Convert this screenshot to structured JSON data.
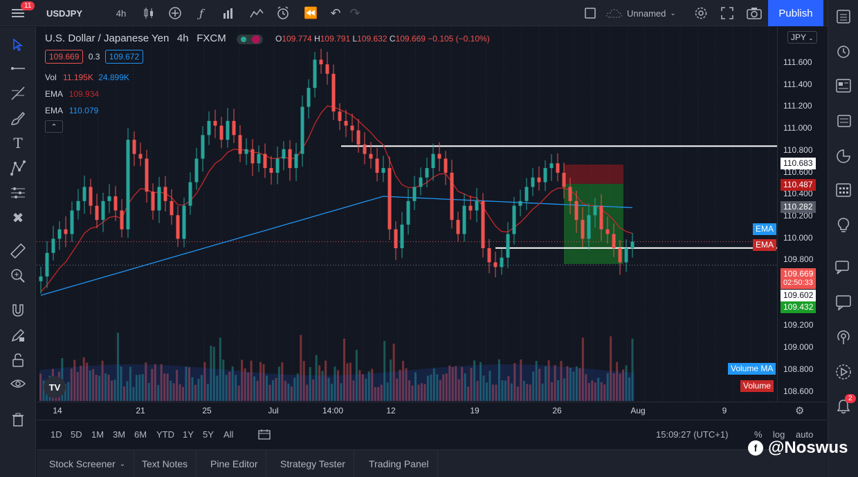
{
  "topbar": {
    "badge": "11",
    "symbol": "USDJPY",
    "interval": "4h",
    "layout_name": "Unnamed",
    "publish_label": "Publish"
  },
  "legend": {
    "title": "U.S. Dollar / Japanese Yen",
    "interval": "4h",
    "exchange": "FXCM",
    "open_label": "O",
    "open": "109.774",
    "high_label": "H",
    "high": "109.791",
    "low_label": "L",
    "low": "109.632",
    "close_label": "C",
    "close": "109.669",
    "change": "−0.105 (−0.10%)",
    "bid": "109.669",
    "spread": "0.3",
    "ask": "109.672",
    "vol_label": "Vol",
    "vol_value": "11.195K",
    "vol_ma": "24.899K",
    "ema1_label": "EMA",
    "ema1_value": "109.934",
    "ema2_label": "EMA",
    "ema2_value": "110.079"
  },
  "colors": {
    "up": "#26a69a",
    "down": "#ef5350",
    "ema_red": "#c62828",
    "ema_blue": "#2196f3",
    "accent": "#2962ff",
    "background": "#131722"
  },
  "price_axis": {
    "currency": "JPY",
    "ticks": [
      "111.600",
      "111.400",
      "111.200",
      "111.000",
      "110.800",
      "110.600",
      "110.400",
      "110.200",
      "110.000",
      "109.800",
      "109.600",
      "109.400",
      "109.200",
      "109.000",
      "108.800",
      "108.600"
    ],
    "labels": {
      "line_high": "110.683",
      "stop": "110.487",
      "entry": "110.282",
      "ema_label": "EMA",
      "ema2_label": "EMA",
      "current": "109.669",
      "countdown": "02:50:33",
      "line_low": "109.602",
      "target": "109.432",
      "volume_ma_label": "Volume MA",
      "volume_label": "Volume"
    }
  },
  "time_axis": {
    "labels": [
      "14",
      "21",
      "25",
      "Jul",
      "14:00",
      "12",
      "19",
      "26",
      "Aug",
      "9"
    ]
  },
  "range_bar": {
    "ranges": [
      "1D",
      "5D",
      "1M",
      "3M",
      "6M",
      "YTD",
      "1Y",
      "5Y",
      "All"
    ],
    "clock": "15:09:27 (UTC+1)",
    "percent": "%",
    "log": "log",
    "auto": "auto"
  },
  "bottom_tabs": [
    "Stock Screener",
    "Text Notes",
    "Pine Editor",
    "Strategy Tester",
    "Trading Panel"
  ],
  "watermark": "@Noswus",
  "notifications_badge": "2",
  "chart_data": {
    "type": "candlestick",
    "symbol": "USDJPY",
    "ylim": [
      108.5,
      111.8
    ],
    "ema_red_last": 109.934,
    "ema_blue_last": 110.079,
    "levels": {
      "resistance": 110.683,
      "support": 109.602,
      "stop": 110.487,
      "entry": 110.282,
      "target": 109.432
    },
    "close_path": [
      109.3,
      109.55,
      109.7,
      109.8,
      109.75,
      110.0,
      110.1,
      110.25,
      110.05,
      109.9,
      110.1,
      110.15,
      110.0,
      109.8,
      110.75,
      110.6,
      110.55,
      110.2,
      110.0,
      110.25,
      110.1,
      109.95,
      109.7,
      110.05,
      110.3,
      110.55,
      110.8,
      110.95,
      110.9,
      110.75,
      110.95,
      110.8,
      110.6,
      110.65,
      110.5,
      110.6,
      110.45,
      110.4,
      110.55,
      110.65,
      110.45,
      110.6,
      111.1,
      111.3,
      111.6,
      111.55,
      111.45,
      111.05,
      110.95,
      110.9,
      110.85,
      110.7,
      110.6,
      110.55,
      110.4,
      110.45,
      109.8,
      109.6,
      109.85,
      110.1,
      110.25,
      110.35,
      110.45,
      110.6,
      110.55,
      110.4,
      109.9,
      109.75,
      110.05,
      110.0,
      110.1,
      109.6,
      109.45,
      109.4,
      109.5,
      109.75,
      110.05,
      110.1,
      110.25,
      110.35,
      110.3,
      110.45,
      110.5,
      110.4,
      110.25,
      110.1,
      109.9,
      109.7,
      109.95,
      110.05,
      109.8,
      109.75,
      109.6,
      109.45,
      109.6,
      109.669
    ]
  }
}
